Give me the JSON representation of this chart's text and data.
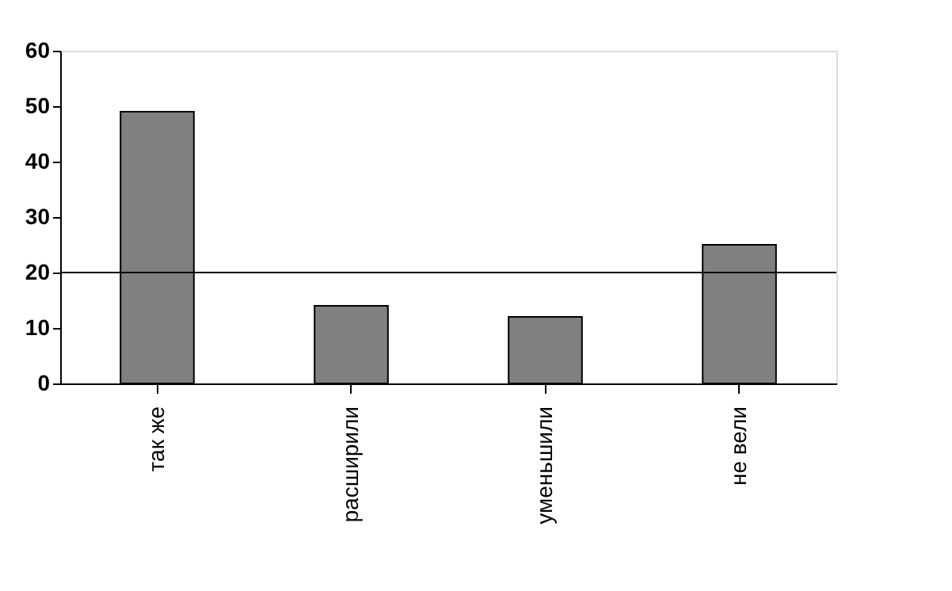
{
  "chart_data": {
    "type": "bar",
    "categories": [
      "так же",
      "расширили",
      "уменьшили",
      "не вели"
    ],
    "values": [
      49,
      14,
      12,
      25
    ],
    "color": "#808080",
    "ylim": [
      0,
      60
    ],
    "yticks": [
      0,
      10,
      20,
      30,
      40,
      50,
      60
    ],
    "ref_lines": [
      {
        "axis": "y",
        "value": 20,
        "color": "#000000"
      }
    ],
    "grid": false
  }
}
